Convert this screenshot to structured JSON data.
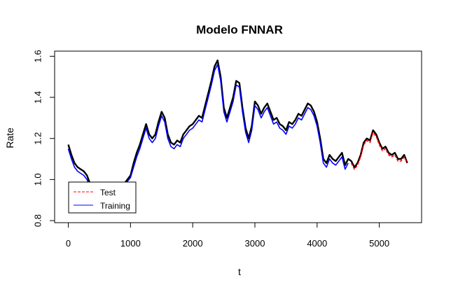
{
  "chart_data": {
    "type": "line",
    "title": "Modelo FNNAR",
    "xlabel": "t",
    "ylabel": "Rate",
    "xlim": [
      -220,
      5680
    ],
    "ylim": [
      0.79,
      1.625
    ],
    "x_ticks": [
      0,
      1000,
      2000,
      3000,
      4000,
      5000
    ],
    "x_tick_labels": [
      "0",
      "1000",
      "2000",
      "3000",
      "4000",
      "5000"
    ],
    "y_ticks": [
      0.8,
      1.0,
      1.2,
      1.4,
      1.6
    ],
    "y_tick_labels": [
      "0.8",
      "1.0",
      "1.2",
      "1.4",
      "1.6"
    ],
    "grid": false,
    "legend_position": "bottom-left",
    "legend": [
      {
        "label": "Test",
        "color": "#ff0000",
        "style": "dashed"
      },
      {
        "label": "Training",
        "color": "#0000ff",
        "style": "solid"
      }
    ],
    "series": [
      {
        "color": "#000000",
        "style": "solid",
        "x": [
          0,
          50,
          100,
          150,
          200,
          250,
          300,
          350,
          400,
          450,
          500,
          550,
          600,
          650,
          700,
          750,
          800,
          850,
          900,
          950,
          1000,
          1050,
          1100,
          1150,
          1200,
          1250,
          1300,
          1350,
          1400,
          1450,
          1500,
          1550,
          1600,
          1650,
          1700,
          1750,
          1800,
          1850,
          1900,
          1950,
          2000,
          2050,
          2100,
          2150,
          2200,
          2250,
          2300,
          2350,
          2400,
          2450,
          2500,
          2550,
          2600,
          2650,
          2700,
          2750,
          2800,
          2850,
          2900,
          2950,
          3000,
          3050,
          3100,
          3150,
          3200,
          3250,
          3300,
          3350,
          3400,
          3450,
          3500,
          3550,
          3600,
          3650,
          3700,
          3750,
          3800,
          3850,
          3900,
          3950,
          4000,
          4050,
          4100,
          4150,
          4200,
          4250,
          4300,
          4350,
          4400,
          4450,
          4500,
          4550,
          4600,
          4650,
          4700,
          4750,
          4800,
          4850,
          4900,
          4950,
          5000,
          5050,
          5100,
          5150,
          5200,
          5250,
          5300,
          5350,
          5400,
          5450
        ],
        "values": [
          1.17,
          1.12,
          1.08,
          1.06,
          1.05,
          1.04,
          1.02,
          0.98,
          0.93,
          0.87,
          0.85,
          0.86,
          0.87,
          0.88,
          0.9,
          0.92,
          0.94,
          0.96,
          0.98,
          1.0,
          1.02,
          1.08,
          1.13,
          1.17,
          1.22,
          1.27,
          1.22,
          1.2,
          1.22,
          1.28,
          1.33,
          1.3,
          1.22,
          1.18,
          1.17,
          1.19,
          1.18,
          1.22,
          1.24,
          1.26,
          1.27,
          1.29,
          1.31,
          1.3,
          1.36,
          1.42,
          1.48,
          1.55,
          1.58,
          1.5,
          1.35,
          1.3,
          1.35,
          1.4,
          1.48,
          1.47,
          1.35,
          1.25,
          1.2,
          1.26,
          1.38,
          1.36,
          1.32,
          1.35,
          1.37,
          1.33,
          1.29,
          1.3,
          1.27,
          1.26,
          1.24,
          1.28,
          1.27,
          1.29,
          1.32,
          1.31,
          1.34,
          1.37,
          1.36,
          1.33,
          1.28,
          1.2,
          1.1,
          1.08,
          1.12,
          1.1,
          1.09,
          1.11,
          1.13,
          1.07,
          1.1,
          1.09,
          1.06,
          1.08,
          1.12,
          1.18,
          1.2,
          1.19,
          1.24,
          1.22,
          1.18,
          1.15,
          1.16,
          1.13,
          1.12,
          1.13,
          1.1,
          1.1,
          1.12,
          1.08
        ]
      },
      {
        "color": "#0000ff",
        "style": "solid",
        "x": [
          0,
          50,
          100,
          150,
          200,
          250,
          300,
          350,
          400,
          450,
          500,
          550,
          600,
          650,
          700,
          750,
          800,
          850,
          900,
          950,
          1000,
          1050,
          1100,
          1150,
          1200,
          1250,
          1300,
          1350,
          1400,
          1450,
          1500,
          1550,
          1600,
          1650,
          1700,
          1750,
          1800,
          1850,
          1900,
          1950,
          2000,
          2050,
          2100,
          2150,
          2200,
          2250,
          2300,
          2350,
          2400,
          2450,
          2500,
          2550,
          2600,
          2650,
          2700,
          2750,
          2800,
          2850,
          2900,
          2950,
          3000,
          3050,
          3100,
          3150,
          3200,
          3250,
          3300,
          3350,
          3400,
          3450,
          3500,
          3550,
          3600,
          3650,
          3700,
          3750,
          3800,
          3850,
          3900,
          3950,
          4000,
          4050,
          4100,
          4150,
          4200,
          4250,
          4300,
          4350,
          4400,
          4450,
          4500
        ],
        "values": [
          1.15,
          1.1,
          1.06,
          1.04,
          1.03,
          1.02,
          1.0,
          0.96,
          0.91,
          0.86,
          0.84,
          0.85,
          0.86,
          0.87,
          0.89,
          0.91,
          0.93,
          0.95,
          0.97,
          0.99,
          1.01,
          1.06,
          1.11,
          1.15,
          1.2,
          1.25,
          1.2,
          1.18,
          1.2,
          1.26,
          1.31,
          1.28,
          1.2,
          1.16,
          1.15,
          1.17,
          1.16,
          1.2,
          1.22,
          1.24,
          1.25,
          1.27,
          1.29,
          1.28,
          1.34,
          1.4,
          1.46,
          1.53,
          1.56,
          1.48,
          1.33,
          1.28,
          1.33,
          1.38,
          1.46,
          1.45,
          1.33,
          1.23,
          1.18,
          1.24,
          1.36,
          1.34,
          1.3,
          1.33,
          1.35,
          1.31,
          1.27,
          1.28,
          1.25,
          1.24,
          1.22,
          1.26,
          1.25,
          1.27,
          1.3,
          1.29,
          1.32,
          1.35,
          1.34,
          1.31,
          1.26,
          1.18,
          1.08,
          1.06,
          1.1,
          1.08,
          1.07,
          1.09,
          1.11,
          1.05,
          1.08
        ]
      },
      {
        "color": "#ff0000",
        "style": "dashed",
        "x": [
          4550,
          4600,
          4650,
          4700,
          4750,
          4800,
          4850,
          4900,
          4950,
          5000,
          5050,
          5100,
          5150,
          5200,
          5250,
          5300,
          5350,
          5400,
          5450
        ],
        "values": [
          1.08,
          1.05,
          1.07,
          1.11,
          1.17,
          1.19,
          1.18,
          1.23,
          1.21,
          1.17,
          1.14,
          1.15,
          1.12,
          1.11,
          1.12,
          1.09,
          1.09,
          1.11,
          1.08
        ]
      }
    ]
  }
}
